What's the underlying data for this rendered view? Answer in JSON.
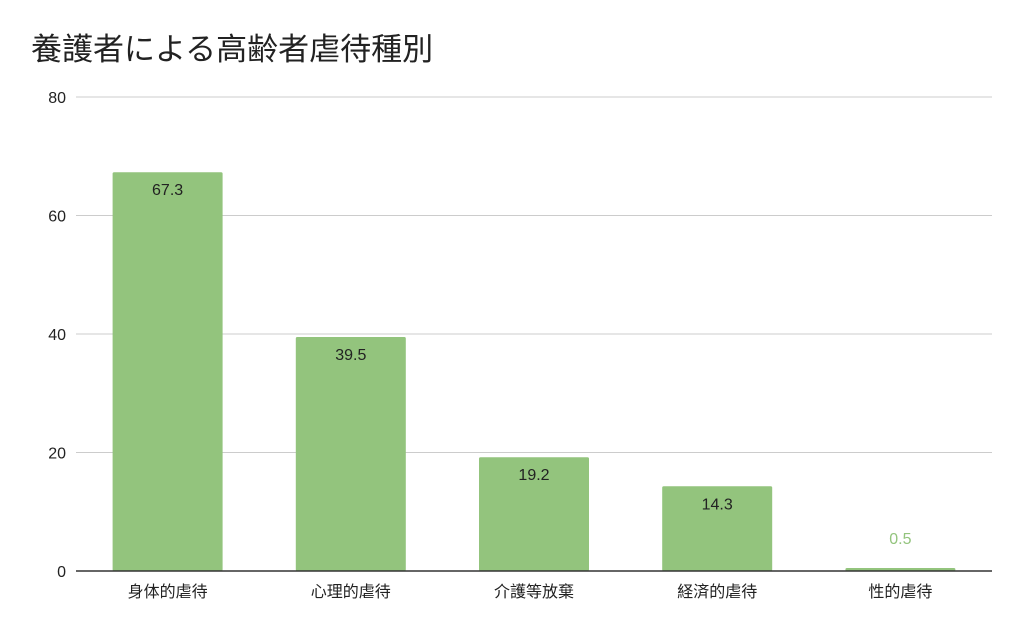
{
  "chart_data": {
    "type": "bar",
    "title": "養護者による高齢者虐待種別",
    "xlabel": "",
    "ylabel": "",
    "categories": [
      "身体的虐待",
      "心理的虐待",
      "介護等放棄",
      "経済的虐待",
      "性的虐待"
    ],
    "values": [
      67.3,
      39.5,
      19.2,
      14.3,
      0.5
    ],
    "data_labels": [
      "67.3",
      "39.5",
      "19.2",
      "14.3",
      "0.5"
    ],
    "ylim": [
      0,
      80
    ],
    "yticks": [
      0,
      20,
      40,
      60,
      80
    ],
    "ytick_labels": [
      "0",
      "20",
      "40",
      "60",
      "80"
    ],
    "grid": true,
    "legend": "none",
    "colors": {
      "bar": "#93c47d",
      "grid": "#cccccc",
      "axis": "#333333",
      "label_inside": "#222222",
      "label_outside": "#93c47d"
    }
  }
}
